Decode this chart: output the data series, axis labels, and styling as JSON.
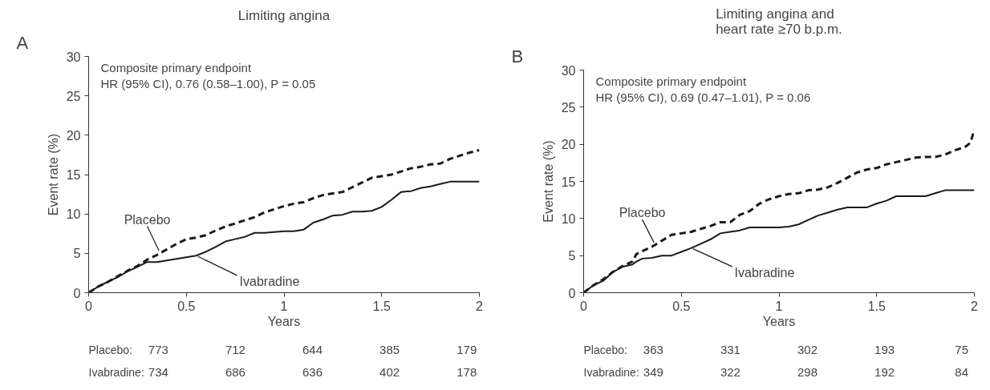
{
  "chart_data": [
    {
      "type": "line",
      "title": "Limiting angina",
      "xlabel": "Years",
      "ylabel": "Event rate (%)",
      "x": [
        0,
        0.05,
        0.1,
        0.15,
        0.2,
        0.25,
        0.3,
        0.35,
        0.4,
        0.45,
        0.5,
        0.55,
        0.6,
        0.65,
        0.7,
        0.75,
        0.8,
        0.85,
        0.9,
        0.95,
        1.0,
        1.05,
        1.1,
        1.15,
        1.2,
        1.25,
        1.3,
        1.35,
        1.4,
        1.45,
        1.5,
        1.55,
        1.6,
        1.65,
        1.7,
        1.75,
        1.8,
        1.85,
        1.9,
        1.95,
        2.0
      ],
      "series": [
        {
          "name": "Placebo",
          "color": "#1a1a1a",
          "line_style": "dashed",
          "values": [
            0,
            0.8,
            1.4,
            2.1,
            2.8,
            3.4,
            4.2,
            4.8,
            5.5,
            6.2,
            6.8,
            7.0,
            7.3,
            7.9,
            8.4,
            8.8,
            9.2,
            9.6,
            10.2,
            10.6,
            11.0,
            11.3,
            11.5,
            12.0,
            12.4,
            12.6,
            12.8,
            13.4,
            14.0,
            14.6,
            14.8,
            15.0,
            15.4,
            15.8,
            16.0,
            16.3,
            16.4,
            17.0,
            17.4,
            17.8,
            18.1
          ]
        },
        {
          "name": "Ivabradine",
          "color": "#1a1a1a",
          "line_style": "solid",
          "values": [
            0,
            0.8,
            1.4,
            2.0,
            2.7,
            3.3,
            3.9,
            3.9,
            4.1,
            4.3,
            4.5,
            4.7,
            5.2,
            5.8,
            6.5,
            6.8,
            7.1,
            7.6,
            7.6,
            7.7,
            7.8,
            7.8,
            8.0,
            8.9,
            9.3,
            9.8,
            9.9,
            10.3,
            10.3,
            10.4,
            10.9,
            11.8,
            12.8,
            12.9,
            13.3,
            13.5,
            13.8,
            14.1,
            14.1,
            14.1,
            14.1
          ]
        }
      ],
      "xlim": [
        0,
        2
      ],
      "xticks": [
        0,
        0.5,
        1,
        1.5,
        2
      ],
      "ylim": [
        0,
        30
      ],
      "yticks": [
        0,
        5,
        10,
        15,
        20,
        25,
        30
      ],
      "grid": false,
      "legend": false,
      "annotations": [
        "A",
        "Composite primary endpoint",
        "HR (95% CI), 0.76 (0.58–1.00), P = 0.05",
        "Placebo:",
        "773",
        "712",
        "644",
        "385",
        "179",
        "Ivabradine:",
        "734",
        "686",
        "636",
        "402",
        "178"
      ]
    },
    {
      "type": "line",
      "title": "Limiting angina and\nheart rate ≥70 b.p.m.",
      "xlabel": "Years",
      "ylabel": "Event rate (%)",
      "x": [
        0,
        0.05,
        0.1,
        0.15,
        0.2,
        0.25,
        0.27,
        0.3,
        0.35,
        0.4,
        0.45,
        0.5,
        0.55,
        0.6,
        0.65,
        0.7,
        0.75,
        0.8,
        0.85,
        0.9,
        0.95,
        1.0,
        1.05,
        1.1,
        1.15,
        1.2,
        1.25,
        1.3,
        1.35,
        1.4,
        1.45,
        1.5,
        1.55,
        1.6,
        1.65,
        1.7,
        1.75,
        1.8,
        1.85,
        1.9,
        1.95,
        1.98,
        2.0
      ],
      "series": [
        {
          "name": "Placebo",
          "color": "#1a1a1a",
          "line_style": "dashed",
          "values": [
            0,
            1.0,
            1.8,
            2.8,
            3.6,
            4.2,
            5.2,
            5.6,
            6.2,
            7.0,
            7.8,
            8.0,
            8.2,
            8.6,
            9.0,
            9.5,
            9.5,
            10.5,
            11.0,
            12.0,
            12.6,
            13.0,
            13.3,
            13.4,
            13.8,
            13.9,
            14.2,
            14.8,
            15.5,
            16.2,
            16.6,
            16.8,
            17.3,
            17.6,
            17.9,
            18.2,
            18.3,
            18.3,
            18.6,
            19.2,
            19.6,
            20.2,
            22.0
          ]
        },
        {
          "name": "Ivabradine",
          "color": "#1a1a1a",
          "line_style": "solid",
          "values": [
            0,
            1.0,
            1.6,
            2.8,
            3.5,
            3.8,
            4.2,
            4.6,
            4.7,
            5.0,
            5.0,
            5.5,
            6.0,
            6.6,
            7.2,
            8.0,
            8.2,
            8.4,
            8.8,
            8.8,
            8.8,
            8.8,
            8.9,
            9.2,
            9.8,
            10.4,
            10.8,
            11.2,
            11.5,
            11.5,
            11.5,
            12.0,
            12.4,
            13.0,
            13.0,
            13.0,
            13.0,
            13.4,
            13.8,
            13.8,
            13.8,
            13.8,
            13.8
          ]
        }
      ],
      "xlim": [
        0,
        2
      ],
      "xticks": [
        0,
        0.5,
        1,
        1.5,
        2
      ],
      "ylim": [
        0,
        30
      ],
      "yticks": [
        0,
        5,
        10,
        15,
        20,
        25,
        30
      ],
      "grid": false,
      "legend": false,
      "annotations": [
        "B",
        "Composite primary endpoint",
        "HR (95% CI), 0.69 (0.47–1.01), P = 0.06",
        "Placebo:",
        "363",
        "331",
        "302",
        "193",
        "75",
        "Ivabradine:",
        "349",
        "322",
        "298",
        "192",
        "84"
      ]
    }
  ]
}
